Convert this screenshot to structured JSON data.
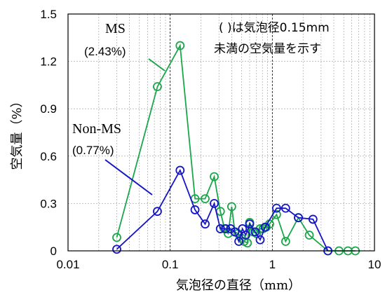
{
  "chart_data": {
    "type": "line",
    "xlabel": "気泡径の直径（mm）",
    "ylabel": "空気量（%）",
    "x_scale": "log",
    "xlim": [
      0.01,
      10
    ],
    "ylim": [
      0,
      1.5
    ],
    "x_ticks": [
      0.01,
      0.1,
      1,
      10
    ],
    "x_tick_labels": [
      "0.01",
      "0.1",
      "1",
      "10"
    ],
    "y_ticks": [
      0,
      0.3,
      0.6,
      0.9,
      1.2,
      1.5
    ],
    "y_tick_labels": [
      "0",
      "0.3",
      "0.6",
      "0.9",
      "1.2",
      "1.5"
    ],
    "grid": true,
    "annotation": [
      "( )は気泡径0.15mm",
      "未満の空気量を示す"
    ],
    "series": [
      {
        "name": "MS",
        "label_value": "(2.43%)",
        "color": "#1aa64a",
        "marker": "open-circle",
        "x": [
          0.03,
          0.075,
          0.125,
          0.175,
          0.22,
          0.27,
          0.31,
          0.34,
          0.37,
          0.4,
          0.43,
          0.46,
          0.5,
          0.53,
          0.57,
          0.6,
          0.65,
          0.7,
          0.76,
          0.81,
          0.87,
          0.94,
          1.1,
          1.35,
          1.8,
          2.3,
          3.5,
          4.5,
          5.5,
          6.5
        ],
        "y": [
          0.085,
          1.04,
          1.3,
          0.33,
          0.33,
          0.47,
          0.25,
          0.14,
          0.11,
          0.28,
          0.12,
          0.11,
          0.08,
          0.06,
          0.05,
          0.18,
          0.12,
          0.11,
          0.14,
          0.14,
          0.15,
          0.17,
          0.23,
          0.06,
          0.21,
          0.1,
          0.0,
          0.0,
          0.0,
          0.0
        ]
      },
      {
        "name": "Non-MS",
        "label_value": "(0.77%)",
        "color": "#1515c8",
        "marker": "open-circle",
        "x": [
          0.03,
          0.075,
          0.125,
          0.175,
          0.22,
          0.27,
          0.31,
          0.35,
          0.39,
          0.43,
          0.47,
          0.51,
          0.55,
          0.6,
          0.68,
          0.76,
          0.85,
          1.1,
          1.35,
          1.8,
          2.5,
          3.5
        ],
        "y": [
          0.01,
          0.25,
          0.51,
          0.26,
          0.17,
          0.3,
          0.14,
          0.14,
          0.14,
          0.12,
          0.06,
          0.14,
          0.1,
          0.17,
          0.12,
          0.07,
          0.15,
          0.27,
          0.27,
          0.21,
          0.2,
          0.0
        ]
      }
    ]
  }
}
